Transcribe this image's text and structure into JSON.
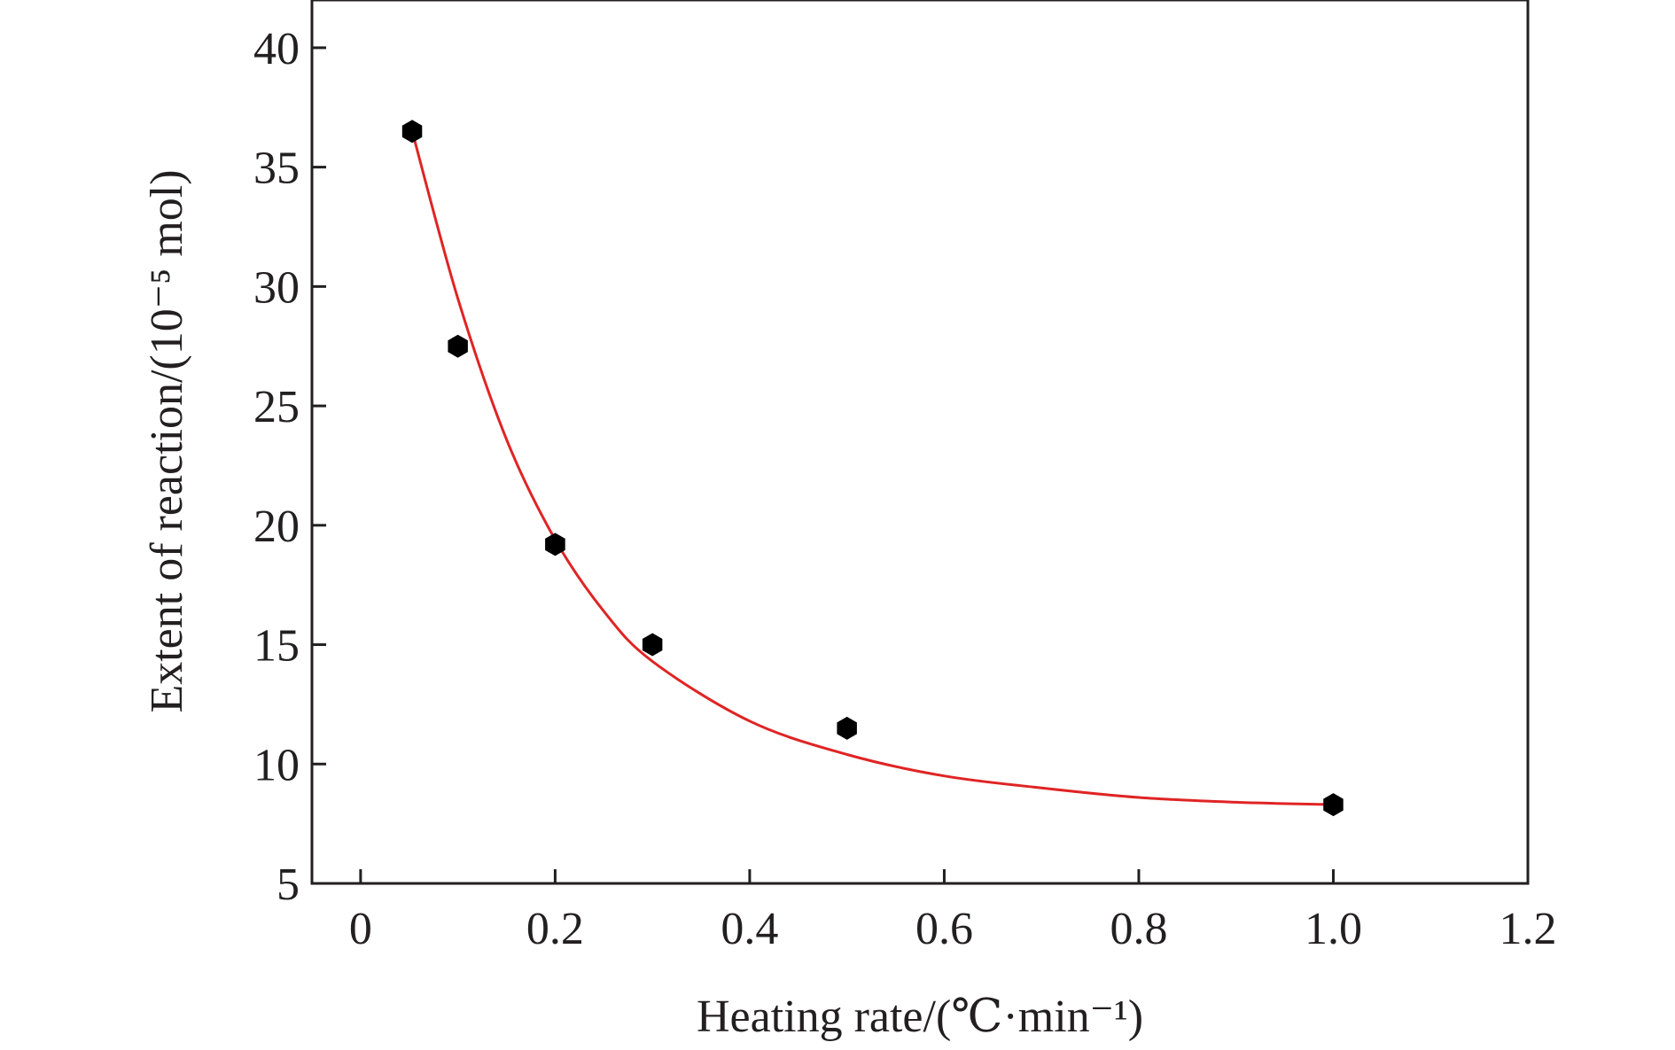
{
  "chart_data": {
    "type": "scatter",
    "title": "",
    "xlabel": "Heating rate/(℃·min⁻¹)",
    "ylabel": "Extent of reaction/(10⁻⁵ mol)",
    "xlim": [
      -0.05,
      1.2
    ],
    "ylim": [
      5,
      42
    ],
    "xticks": [
      0,
      0.2,
      0.4,
      0.6,
      0.8,
      1.0,
      1.2
    ],
    "xtick_labels": [
      "0",
      "0.2",
      "0.4",
      "0.6",
      "0.8",
      "1.0",
      "1.2"
    ],
    "yticks": [
      5,
      10,
      15,
      20,
      25,
      30,
      35,
      40
    ],
    "ytick_labels": [
      "5",
      "10",
      "15",
      "20",
      "25",
      "30",
      "35",
      "40"
    ],
    "grid": false,
    "series": [
      {
        "kind": "points",
        "marker": "hexagon",
        "color": "#000000",
        "x": [
          0.053,
          0.1,
          0.2,
          0.3,
          0.5,
          1.0
        ],
        "y": [
          36.5,
          27.5,
          19.2,
          15.0,
          11.5,
          8.3
        ]
      },
      {
        "kind": "fit",
        "color": "#e02424",
        "x": [
          0.053,
          0.1,
          0.15,
          0.2,
          0.25,
          0.3,
          0.4,
          0.5,
          0.6,
          0.7,
          0.8,
          0.9,
          1.0
        ],
        "y": [
          36.5,
          29.5,
          23.6,
          19.4,
          16.4,
          14.3,
          11.8,
          10.4,
          9.5,
          9.0,
          8.6,
          8.4,
          8.3
        ]
      }
    ]
  }
}
